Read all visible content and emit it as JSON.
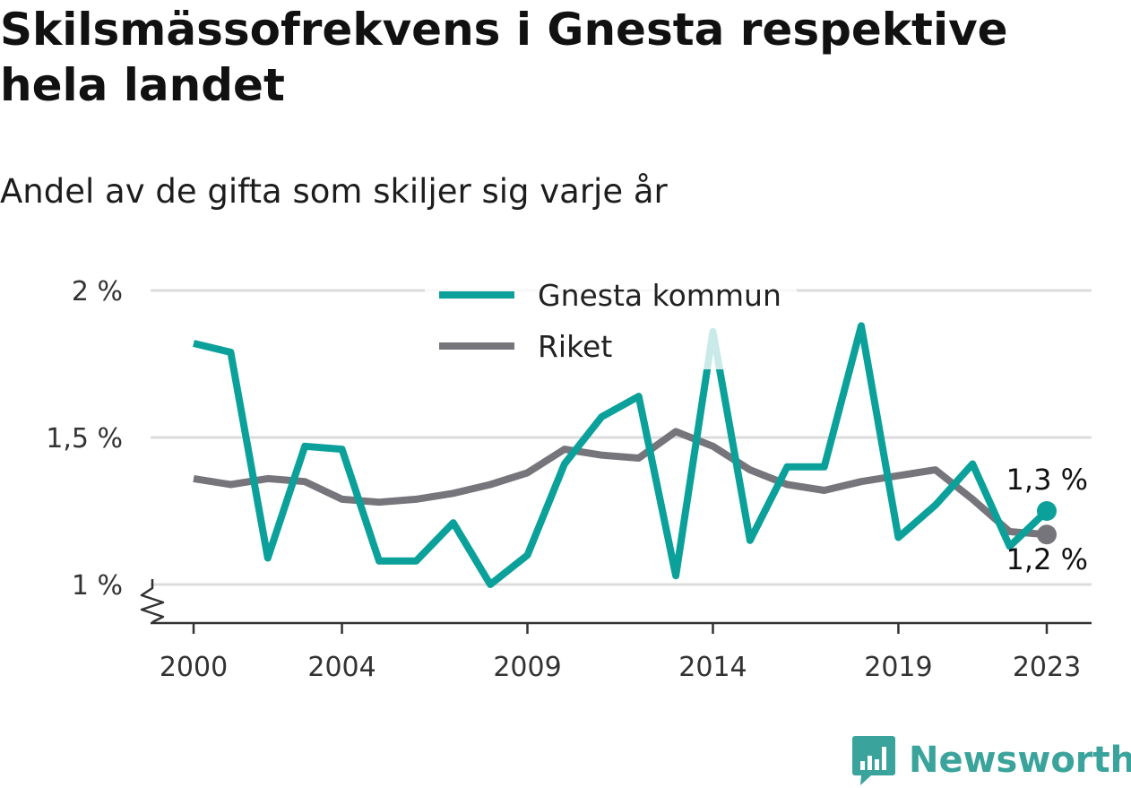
{
  "header": {
    "title": "Skilsmässofrekvens i Gnesta respektive hela landet",
    "subtitle": "Andel av de gifta som skiljer sig varje år"
  },
  "brand": {
    "name": "Newsworthy",
    "icon": "chart-speech-bubble-icon",
    "color": "#3aa39b"
  },
  "chart_data": {
    "type": "line",
    "x": [
      2000,
      2001,
      2002,
      2003,
      2004,
      2005,
      2006,
      2007,
      2008,
      2009,
      2010,
      2011,
      2012,
      2013,
      2014,
      2015,
      2016,
      2017,
      2018,
      2019,
      2020,
      2021,
      2022,
      2023
    ],
    "series": [
      {
        "name": "Gnesta kommun",
        "color": "#0ba19a",
        "values": [
          1.82,
          1.79,
          1.09,
          1.47,
          1.46,
          1.08,
          1.08,
          1.21,
          1.0,
          1.1,
          1.41,
          1.57,
          1.64,
          1.03,
          1.86,
          1.15,
          1.4,
          1.4,
          1.88,
          1.16,
          1.27,
          1.41,
          1.13,
          1.25
        ],
        "end_label": "1,3 %"
      },
      {
        "name": "Riket",
        "color": "#76757b",
        "values": [
          1.36,
          1.34,
          1.36,
          1.35,
          1.29,
          1.28,
          1.29,
          1.31,
          1.34,
          1.38,
          1.46,
          1.44,
          1.43,
          1.52,
          1.47,
          1.39,
          1.34,
          1.32,
          1.35,
          1.37,
          1.39,
          1.29,
          1.18,
          1.17
        ],
        "end_label": "1,2 %"
      }
    ],
    "x_tick_labels": [
      "2000",
      "2004",
      "2009",
      "2014",
      "2019",
      "2023"
    ],
    "y_ticks": [
      1,
      1.5,
      2
    ],
    "y_tick_labels": [
      "1 %",
      "1,5 %",
      "2 %"
    ],
    "ylim": [
      0.86,
      2.0
    ],
    "xlim": [
      2000,
      2023
    ],
    "axis_break": true,
    "grid": true,
    "legend_position": "top-center",
    "colors": {
      "grid": "#dcdcdc",
      "axis": "#333333"
    }
  }
}
